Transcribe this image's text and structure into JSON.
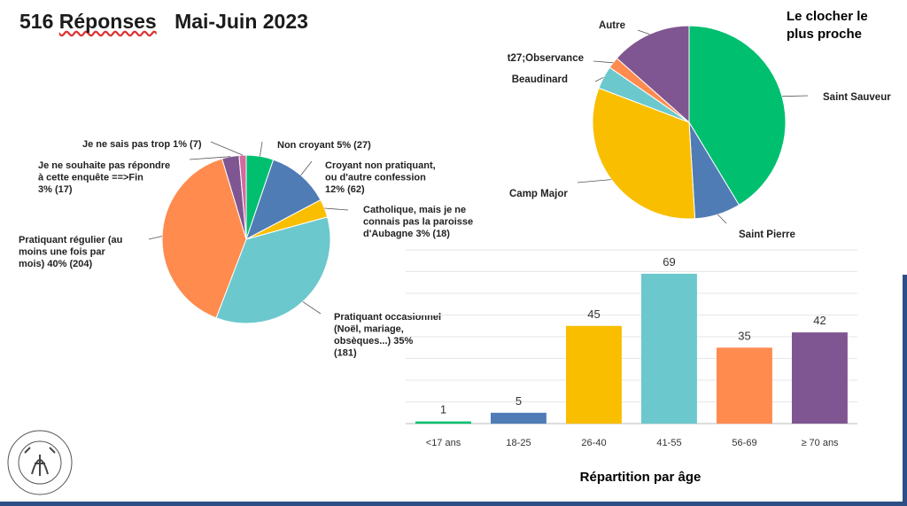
{
  "title": {
    "count": "516",
    "word": "Réponses",
    "period": "Mai-Juin  2023"
  },
  "chart_data": [
    {
      "type": "pie",
      "title": "",
      "slices": [
        {
          "label_lines": [
            "Non croyant 5% (27)"
          ],
          "value": 27,
          "color": "#00bf6f"
        },
        {
          "label_lines": [
            "Croyant non pratiquant,",
            "ou d'autre confession",
            "12% (62)"
          ],
          "value": 62,
          "color": "#507cb6"
        },
        {
          "label_lines": [
            "Catholique, mais je ne",
            "connais pas la paroisse",
            "d'Aubagne 3% (18)"
          ],
          "value": 18,
          "color": "#f9be00"
        },
        {
          "label_lines": [
            "Pratiquant occasionnel",
            "(Noël, mariage,",
            "obsèques...) 35%",
            "(181)"
          ],
          "value": 181,
          "color": "#6bc8cd"
        },
        {
          "label_lines": [
            "Pratiquant régulier (au",
            "moins une fois par",
            "mois) 40% (204)"
          ],
          "value": 204,
          "color": "#ff8b4f"
        },
        {
          "label_lines": [
            "Je ne souhaite pas répondre",
            "à cette enquête ==>Fin",
            "3% (17)"
          ],
          "value": 17,
          "color": "#7f5691"
        },
        {
          "label_lines": [
            "Je ne sais pas trop 1% (7)"
          ],
          "value": 7,
          "color": "#d36a9e"
        }
      ]
    },
    {
      "type": "pie",
      "title": "Le clocher le plus proche",
      "title_lines": [
        "Le clocher le",
        "plus proche"
      ],
      "slices": [
        {
          "label": "Saint Sauveur",
          "value": 43,
          "color": "#00bf6f"
        },
        {
          "label": "Saint Pierre",
          "value": 8,
          "color": "#507cb6"
        },
        {
          "label": "Camp Major",
          "value": 33,
          "color": "#f9be00"
        },
        {
          "label": "Beaudinard",
          "value": 4,
          "color": "#6bc8cd"
        },
        {
          "label": "t27;Observance",
          "value": 2,
          "color": "#ff8b4f"
        },
        {
          "label": "Autre",
          "value": 14,
          "color": "#7f5691"
        }
      ]
    },
    {
      "type": "bar",
      "title": "Répartition par âge",
      "categories": [
        "<17 ans",
        "18-25",
        "26-40",
        "41-55",
        "56-69",
        "≥ 70 ans"
      ],
      "values": [
        1,
        5,
        45,
        69,
        35,
        42
      ],
      "colors": [
        "#00bf6f",
        "#507cb6",
        "#f9be00",
        "#6bc8cd",
        "#ff8b4f",
        "#7f5691"
      ],
      "ylim": [
        0,
        80
      ],
      "grid": true
    }
  ],
  "logo": {
    "text_top": "PAROISSE SAINT SAUVEUR D'AUBAGNE",
    "text_bottom": "DIOCÈSE DE MARSEILLE"
  }
}
